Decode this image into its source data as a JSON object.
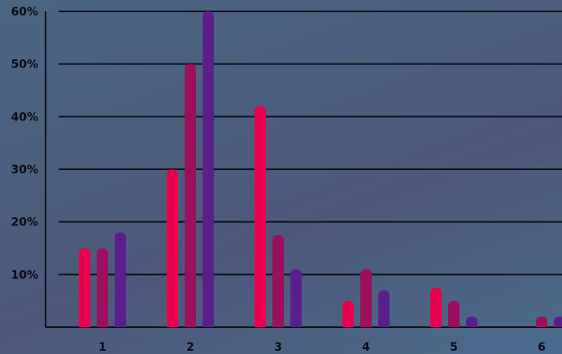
{
  "chart_data": {
    "type": "bar",
    "categories": [
      "1",
      "2",
      "3",
      "4",
      "5",
      "6"
    ],
    "series": [
      {
        "values": [
          15,
          30,
          42,
          5,
          7.5,
          0
        ],
        "color": "#e8004f"
      },
      {
        "values": [
          15,
          50,
          17.5,
          11,
          5,
          2
        ],
        "color": "#9b0f5c"
      },
      {
        "values": [
          18,
          60,
          11,
          7,
          2,
          2
        ],
        "color": "#5a1f8a"
      }
    ],
    "y_ticks": [
      "10%",
      "20%",
      "30%",
      "40%",
      "50%",
      "60%"
    ],
    "ylim": [
      0,
      60
    ],
    "y_unit": "%",
    "grid": true,
    "title": "",
    "xlabel": "",
    "ylabel": ""
  }
}
